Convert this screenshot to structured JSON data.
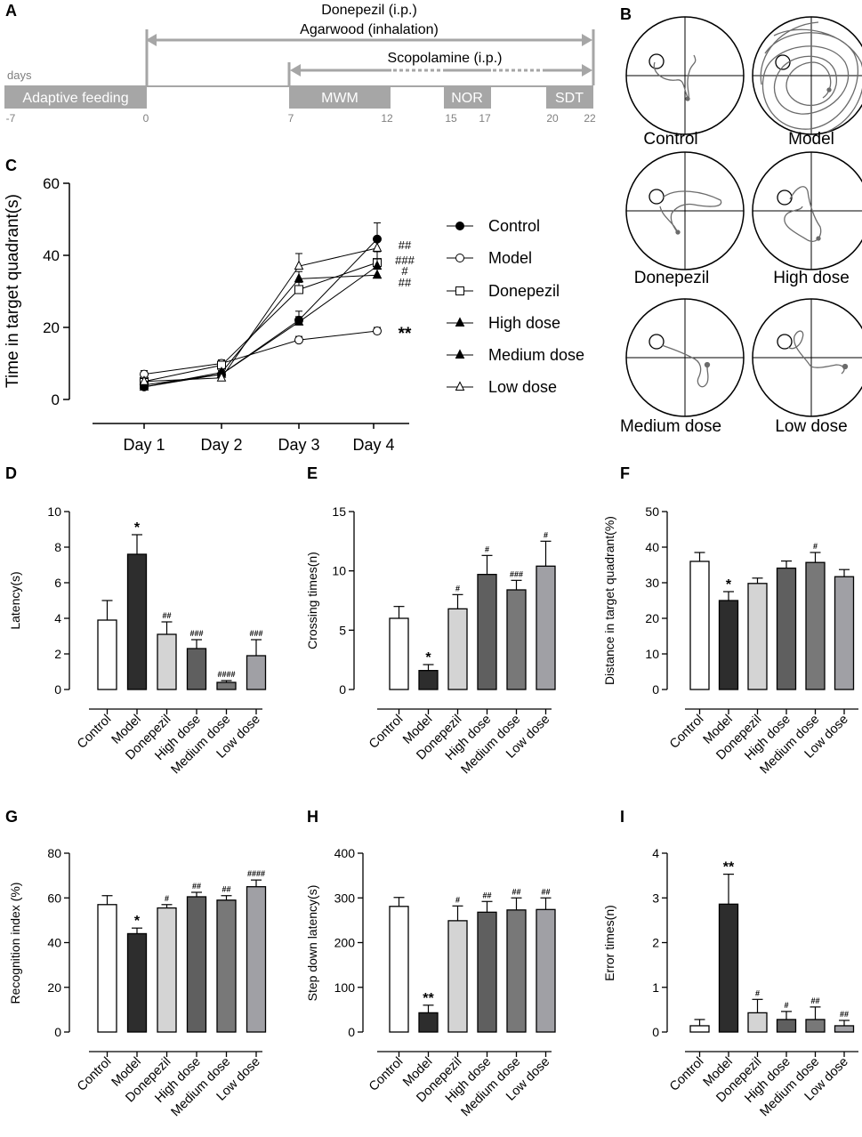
{
  "panel_labels": [
    "A",
    "B",
    "C",
    "D",
    "E",
    "F",
    "G",
    "H",
    "I"
  ],
  "timeline": {
    "days_label": "days",
    "treatment_lines": [
      "Donepezil (i.p.)",
      "Agarwood (inhalation)"
    ],
    "scopolamine_label": "Scopolamine (i.p.)",
    "segments": [
      {
        "label": "Adaptive feeding",
        "start": -7,
        "end": 0
      },
      {
        "label": "MWM",
        "start": 7,
        "end": 12
      },
      {
        "label": "NOR",
        "start": 15,
        "end": 17
      },
      {
        "label": "SDT",
        "start": 20,
        "end": 22
      }
    ],
    "tick_labels": [
      "-7",
      "0",
      "7",
      "12",
      "15",
      "17",
      "20",
      "22"
    ]
  },
  "trajectories": {
    "labels": [
      "Control",
      "Model",
      "Donepezil",
      "High dose",
      "Medium dose",
      "Low dose"
    ]
  },
  "chart_data": [
    {
      "panel": "C",
      "type": "line",
      "title": "",
      "xlabel": "",
      "ylabel": "Time in target quadrant(s)",
      "categories": [
        "Day 1",
        "Day 2",
        "Day 3",
        "Day 4"
      ],
      "ylim": [
        0,
        60
      ],
      "yticks": [
        0,
        20,
        40,
        60
      ],
      "series": [
        {
          "name": "Control",
          "marker": "circle-filled",
          "values": [
            3.5,
            7,
            22,
            44.5
          ],
          "errors": [
            0.8,
            1.5,
            2.5,
            4.5
          ]
        },
        {
          "name": "Model",
          "marker": "circle-open",
          "values": [
            7,
            10,
            16.5,
            19
          ],
          "errors": [
            1,
            1,
            1,
            1
          ]
        },
        {
          "name": "Donepezil",
          "marker": "square-open",
          "values": [
            5,
            9.5,
            30.5,
            38
          ],
          "errors": [
            0.8,
            1,
            2,
            3
          ]
        },
        {
          "name": "High dose",
          "marker": "triangle-filled",
          "values": [
            3.5,
            7.5,
            33.5,
            34.5
          ],
          "errors": [
            0.8,
            1,
            2,
            2
          ]
        },
        {
          "name": "Medium dose",
          "marker": "triangle-filled",
          "values": [
            4,
            7,
            21.5,
            37
          ],
          "errors": [
            0.8,
            1,
            1.5,
            2
          ]
        },
        {
          "name": "Low dose",
          "marker": "triangle-open",
          "values": [
            5,
            6,
            37,
            42
          ],
          "errors": [
            0.8,
            1,
            3.5,
            3
          ]
        }
      ],
      "annotations": [
        "##",
        "###",
        "#",
        "##",
        "**"
      ]
    },
    {
      "panel": "D",
      "type": "bar",
      "ylabel": "Latency(s)",
      "ylim": [
        0,
        10
      ],
      "yticks": [
        0,
        2,
        4,
        6,
        8,
        10
      ],
      "categories": [
        "Control",
        "Model",
        "Donepezil",
        "High dose",
        "Medium dose",
        "Low dose"
      ],
      "values": [
        3.9,
        7.6,
        3.1,
        2.3,
        0.4,
        1.9
      ],
      "errors": [
        1.1,
        1.1,
        0.7,
        0.5,
        0.1,
        0.9
      ],
      "annotations": [
        "",
        "*",
        "##",
        "###",
        "####",
        "###"
      ]
    },
    {
      "panel": "E",
      "type": "bar",
      "ylabel": "Crossing times(n)",
      "ylim": [
        0,
        15
      ],
      "yticks": [
        0,
        5,
        10,
        15
      ],
      "categories": [
        "Control",
        "Model",
        "Donepezil",
        "High dose",
        "Medium dose",
        "Low dose"
      ],
      "values": [
        6,
        1.6,
        6.8,
        9.7,
        8.4,
        10.4
      ],
      "errors": [
        1,
        0.5,
        1.2,
        1.6,
        0.8,
        2.1
      ],
      "annotations": [
        "",
        "*",
        "#",
        "#",
        "###",
        "#"
      ]
    },
    {
      "panel": "F",
      "type": "bar",
      "ylabel": "Distance in target quadrant(%)",
      "ylim": [
        0,
        50
      ],
      "yticks": [
        0,
        10,
        20,
        30,
        40,
        50
      ],
      "categories": [
        "Control",
        "Model",
        "Donepezil",
        "High dose",
        "Medium dose",
        "Low dose"
      ],
      "values": [
        36,
        25,
        29.8,
        34.1,
        35.7,
        31.7
      ],
      "errors": [
        2.5,
        2.5,
        1.5,
        2,
        2.8,
        2
      ],
      "annotations": [
        "",
        "*",
        "",
        "",
        "#",
        ""
      ]
    },
    {
      "panel": "G",
      "type": "bar",
      "ylabel": "Recognition index (%)",
      "ylim": [
        0,
        80
      ],
      "yticks": [
        0,
        20,
        40,
        60,
        80
      ],
      "categories": [
        "Control",
        "Model",
        "Donepezil",
        "High dose",
        "Medium dose",
        "Low dose"
      ],
      "values": [
        57,
        44,
        55.5,
        60.5,
        59,
        65
      ],
      "errors": [
        4,
        2.5,
        1.5,
        2,
        2,
        3
      ],
      "annotations": [
        "",
        "*",
        "#",
        "##",
        "##",
        "####"
      ]
    },
    {
      "panel": "H",
      "type": "bar",
      "ylabel": "Step down latency(s)",
      "ylim": [
        0,
        400
      ],
      "yticks": [
        0,
        100,
        200,
        300,
        400
      ],
      "categories": [
        "Control",
        "Model",
        "Donepezil",
        "High dose",
        "Medium dose",
        "Low dose"
      ],
      "values": [
        281,
        43,
        249,
        268,
        273,
        274
      ],
      "errors": [
        20,
        17,
        33,
        24,
        27,
        26
      ],
      "annotations": [
        "",
        "**",
        "#",
        "##",
        "##",
        "##"
      ]
    },
    {
      "panel": "I",
      "type": "bar",
      "ylabel": "Error times(n)",
      "ylim": [
        0,
        4
      ],
      "yticks": [
        0,
        1,
        2,
        3,
        4
      ],
      "categories": [
        "Control",
        "Model",
        "Donepezil",
        "High dose",
        "Medium dose",
        "Low dose"
      ],
      "values": [
        0.14,
        2.86,
        0.43,
        0.28,
        0.28,
        0.14
      ],
      "errors": [
        0.14,
        0.67,
        0.3,
        0.18,
        0.28,
        0.12
      ],
      "annotations": [
        "",
        "**",
        "#",
        "#",
        "##",
        "##"
      ]
    }
  ],
  "colors": {
    "axis": "#000000",
    "timeline_gray": "#a6a6a6",
    "timeline_text_gray": "#7f7f7f",
    "bars": [
      "#ffffff",
      "#2d2d2d",
      "#d4d4d4",
      "#5f5f5f",
      "#787878",
      "#a0a0a5"
    ],
    "trajectory_line": "#6b6b6b"
  }
}
